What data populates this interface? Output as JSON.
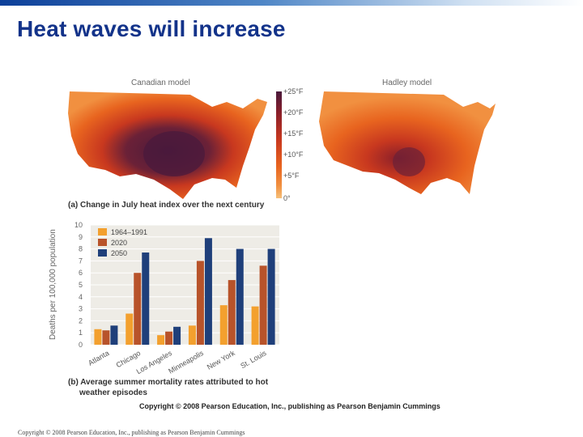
{
  "slide": {
    "title": "Heat waves will increase",
    "footer": "Copyright © 2008 Pearson Education, Inc., publishing as Pearson Benjamin Cummings"
  },
  "maps": {
    "left_label": "Canadian model",
    "right_label": "Hadley model",
    "legend": [
      "+25°F",
      "+20°F",
      "+15°F",
      "+10°F",
      "+5°F",
      "0°"
    ],
    "legend_colors": [
      "#4a1a3c",
      "#8a1f2a",
      "#c8381f",
      "#e8641f",
      "#f19040",
      "#f6c07a"
    ],
    "caption_tag": "(a)",
    "caption": "Change in July heat index over the next century"
  },
  "chart_data": {
    "type": "bar",
    "categories": [
      "Atlanta",
      "Chicago",
      "Los Angeles",
      "Minneapolis",
      "New York",
      "St. Louis"
    ],
    "series": [
      {
        "name": "1964–1991",
        "color": "#f3a02e",
        "values": [
          1.3,
          2.6,
          0.8,
          1.6,
          3.3,
          3.2
        ]
      },
      {
        "name": "2020",
        "color": "#b8532a",
        "values": [
          1.2,
          6.0,
          1.1,
          7.0,
          5.4,
          6.6
        ]
      },
      {
        "name": "2050",
        "color": "#1f3f7a",
        "values": [
          1.6,
          7.7,
          1.5,
          8.9,
          8.0,
          8.0
        ]
      }
    ],
    "ylabel": "Deaths per 100,000 population",
    "ylim": [
      0,
      10
    ],
    "yticks": [
      "0",
      "1",
      "2",
      "3",
      "4",
      "5",
      "6",
      "7",
      "8",
      "9",
      "10"
    ],
    "caption_tag": "(b)",
    "caption_line1": "Average summer mortality rates attributed to hot",
    "caption_line2": "weather episodes"
  },
  "figure_copyright": "Copyright © 2008 Pearson Education, Inc., publishing as Pearson Benjamin Cummings"
}
